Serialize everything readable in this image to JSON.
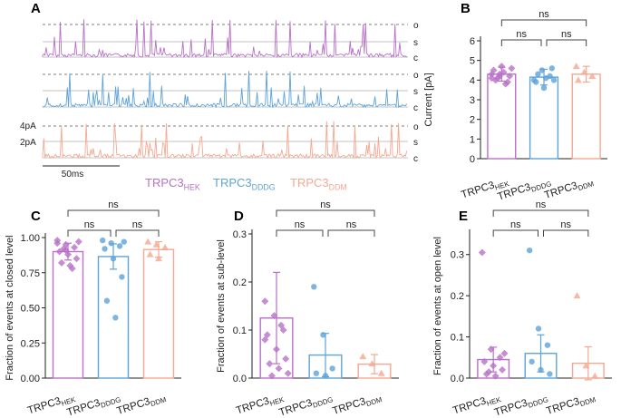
{
  "colors": {
    "hek": "#b870c8",
    "dddg": "#5ea3d8",
    "ddm": "#f4a890",
    "axis": "#222222",
    "grid": "#888888"
  },
  "panels": {
    "A": {
      "letter": "A",
      "traces": [
        {
          "name": "TRPC3_HEK",
          "level_labels": [
            "o",
            "s",
            "c"
          ]
        },
        {
          "name": "TRPC3_DDDG",
          "level_labels": [
            "o",
            "s",
            "c"
          ]
        },
        {
          "name": "TRPC3_DDM",
          "level_labels": [
            "o",
            "s",
            "c"
          ]
        }
      ],
      "scale_current": [
        "4pA",
        "2pA"
      ],
      "scale_time": "50ms",
      "legend": [
        {
          "base": "TRPC3",
          "sub": "HEK"
        },
        {
          "base": "TRPC3",
          "sub": "DDDG"
        },
        {
          "base": "TRPC3",
          "sub": "DDM"
        }
      ]
    }
  },
  "chart_data": [
    {
      "panel": "B",
      "type": "bar",
      "title": "",
      "ylabel": "Current [pA]",
      "ylim": [
        0,
        6
      ],
      "yticks": [
        "0",
        "1",
        "2",
        "3",
        "4",
        "5",
        "6"
      ],
      "categories": [
        {
          "base": "TRPC3",
          "sub": "HEK"
        },
        {
          "base": "TRPC3",
          "sub": "DDDG"
        },
        {
          "base": "TRPC3",
          "sub": "DDM"
        }
      ],
      "values": [
        4.3,
        4.15,
        4.3
      ],
      "errors": [
        0.35,
        0.4,
        0.4
      ],
      "points": [
        [
          4.1,
          4.3,
          3.9,
          4.5,
          4.7,
          4.2,
          4.0,
          4.4,
          4.6,
          4.1,
          3.8,
          4.3,
          4.2
        ],
        [
          4.0,
          4.5,
          4.2,
          3.9,
          3.6,
          4.6,
          4.3,
          4.1,
          4.0
        ],
        [
          4.7,
          4.4,
          4.2,
          4.0
        ]
      ],
      "markers": [
        "diamond",
        "circle",
        "triangle"
      ],
      "sig": [
        {
          "label": "ns",
          "from": 0,
          "to": 1,
          "level": 1
        },
        {
          "label": "ns",
          "from": 1,
          "to": 2,
          "level": 1
        },
        {
          "label": "ns",
          "from": 0,
          "to": 2,
          "level": 2
        }
      ]
    },
    {
      "panel": "C",
      "type": "bar",
      "title": "",
      "ylabel": "Fraction of events at closed level",
      "ylim": [
        0,
        1.0
      ],
      "yticks": [
        "0.00",
        "0.25",
        "0.50",
        "0.75",
        "1.00"
      ],
      "categories": [
        {
          "base": "TRPC3",
          "sub": "HEK"
        },
        {
          "base": "TRPC3",
          "sub": "DDDG"
        },
        {
          "base": "TRPC3",
          "sub": "DDM"
        }
      ],
      "values": [
        0.9,
        0.865,
        0.915
      ],
      "errors": [
        0.06,
        0.09,
        0.055
      ],
      "points": [
        [
          0.98,
          0.95,
          0.93,
          0.9,
          0.88,
          0.85,
          0.82,
          0.8,
          0.97,
          0.92,
          0.78,
          0.96,
          0.91
        ],
        [
          0.98,
          0.96,
          0.94,
          0.92,
          0.85,
          0.72,
          0.55,
          0.43,
          0.97
        ],
        [
          0.97,
          0.95,
          0.93,
          0.88,
          0.85
        ]
      ],
      "markers": [
        "diamond",
        "circle",
        "triangle"
      ],
      "sig": [
        {
          "label": "ns",
          "from": 0,
          "to": 1,
          "level": 1
        },
        {
          "label": "ns",
          "from": 1,
          "to": 2,
          "level": 1
        },
        {
          "label": "ns",
          "from": 0,
          "to": 2,
          "level": 2
        }
      ]
    },
    {
      "panel": "D",
      "type": "bar",
      "title": "",
      "ylabel": "Fraction of events at  sub-level",
      "ylim": [
        0,
        0.3
      ],
      "yticks": [
        "0.0",
        "0.1",
        "0.2",
        "0.3"
      ],
      "categories": [
        {
          "base": "TRPC3",
          "sub": "HEK"
        },
        {
          "base": "TRPC3",
          "sub": "DDDG"
        },
        {
          "base": "TRPC3",
          "sub": "DDM"
        }
      ],
      "values": [
        0.125,
        0.048,
        0.029
      ],
      "errors": [
        0.095,
        0.045,
        0.02
      ],
      "points": [
        [
          0.16,
          0.13,
          0.1,
          0.09,
          0.06,
          0.04,
          0.03,
          0.02,
          0.01,
          0.005,
          0.11,
          0.08
        ],
        [
          0.19,
          0.09,
          0.02,
          0.01,
          0.005
        ],
        [
          0.045,
          0.03,
          0.01
        ]
      ],
      "markers": [
        "diamond",
        "circle",
        "triangle"
      ],
      "sig": [
        {
          "label": "ns",
          "from": 0,
          "to": 1,
          "level": 1
        },
        {
          "label": "ns",
          "from": 1,
          "to": 2,
          "level": 1
        },
        {
          "label": "ns",
          "from": 0,
          "to": 2,
          "level": 2
        }
      ]
    },
    {
      "panel": "E",
      "type": "bar",
      "title": "",
      "ylabel": "Fraction of events at open level",
      "ylim": [
        0,
        0.35
      ],
      "yticks": [
        "0.0",
        "0.1",
        "0.2",
        "0.3"
      ],
      "categories": [
        {
          "base": "TRPC3",
          "sub": "HEK"
        },
        {
          "base": "TRPC3",
          "sub": "DDDG"
        },
        {
          "base": "TRPC3",
          "sub": "DDM"
        }
      ],
      "values": [
        0.045,
        0.06,
        0.036
      ],
      "errors": [
        0.03,
        0.045,
        0.04
      ],
      "points": [
        [
          0.305,
          0.07,
          0.05,
          0.04,
          0.03,
          0.02,
          0.01,
          0.005,
          0.06,
          0.015
        ],
        [
          0.31,
          0.12,
          0.08,
          0.04,
          0.02,
          0.01
        ],
        [
          0.2,
          0.03,
          0.005
        ]
      ],
      "markers": [
        "diamond",
        "circle",
        "triangle"
      ],
      "sig": [
        {
          "label": "ns",
          "from": 0,
          "to": 1,
          "level": 1
        },
        {
          "label": "ns",
          "from": 1,
          "to": 2,
          "level": 1
        },
        {
          "label": "ns",
          "from": 0,
          "to": 2,
          "level": 2
        }
      ]
    }
  ]
}
